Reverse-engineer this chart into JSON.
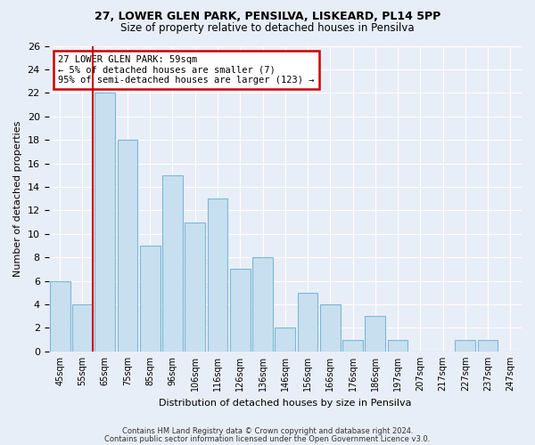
{
  "title1": "27, LOWER GLEN PARK, PENSILVA, LISKEARD, PL14 5PP",
  "title2": "Size of property relative to detached houses in Pensilva",
  "xlabel": "Distribution of detached houses by size in Pensilva",
  "ylabel": "Number of detached properties",
  "footnote1": "Contains HM Land Registry data © Crown copyright and database right 2024.",
  "footnote2": "Contains public sector information licensed under the Open Government Licence v3.0.",
  "annotation_line1": "27 LOWER GLEN PARK: 59sqm",
  "annotation_line2": "← 5% of detached houses are smaller (7)",
  "annotation_line3": "95% of semi-detached houses are larger (123) →",
  "bar_labels": [
    "45sqm",
    "55sqm",
    "65sqm",
    "75sqm",
    "85sqm",
    "96sqm",
    "106sqm",
    "116sqm",
    "126sqm",
    "136sqm",
    "146sqm",
    "156sqm",
    "166sqm",
    "176sqm",
    "186sqm",
    "197sqm",
    "207sqm",
    "217sqm",
    "227sqm",
    "237sqm",
    "247sqm"
  ],
  "bar_heights": [
    6,
    4,
    22,
    18,
    9,
    15,
    11,
    13,
    7,
    8,
    2,
    5,
    4,
    1,
    3,
    1,
    0,
    0,
    1,
    1,
    0
  ],
  "bar_color": "#c8dff0",
  "bar_edgecolor": "#7bb8d4",
  "highlight_color": "#cc0000",
  "annotation_box_color": "#cc0000",
  "ylim": [
    0,
    26
  ],
  "yticks": [
    0,
    2,
    4,
    6,
    8,
    10,
    12,
    14,
    16,
    18,
    20,
    22,
    24,
    26
  ],
  "background_color": "#e8eef8",
  "grid_color": "#ffffff",
  "red_line_bar_index": 1
}
